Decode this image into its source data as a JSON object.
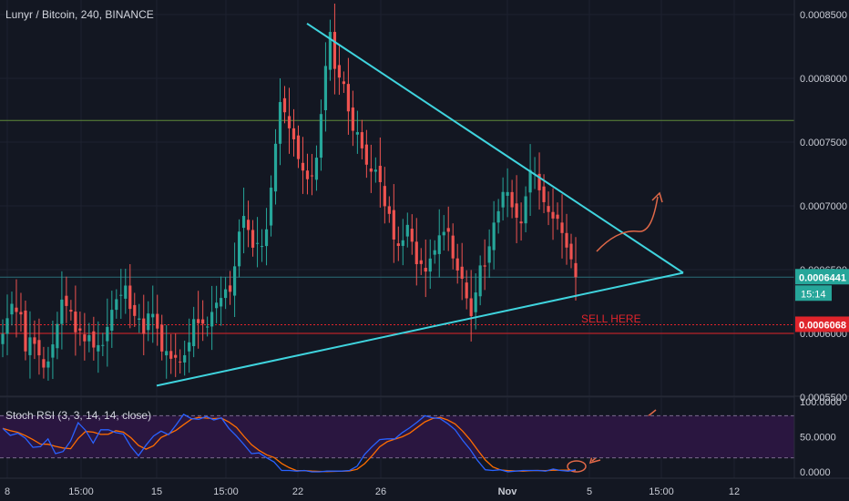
{
  "symbol_title": "Lunyr / Bitcoin, 240, BINANCE",
  "colors": {
    "background": "#131722",
    "grid": "#1e2230",
    "up": "#26a69a",
    "down": "#ef5350",
    "trendline": "#3fd4de",
    "h_line_green": "#5f8a3a",
    "h_line_teal": "#2a6d77",
    "sell_line": "#e0242b",
    "rsi_k": "#2962ff",
    "rsi_d": "#ff6d00",
    "rsi_band": "#2a1640",
    "annotation": "#e06848",
    "price_tag_teal": "#26a69a",
    "price_tag_red": "#e0242b"
  },
  "price_axis": {
    "ticks": [
      "0.0008500",
      "0.0008000",
      "0.0007500",
      "0.0007000",
      "0.0006500",
      "0.0006000",
      "0.0005500"
    ],
    "current_price_label": "0.0006441",
    "countdown_label": "15:14",
    "sell_price_label": "0.0006068"
  },
  "rsi_axis": {
    "ticks": [
      "100.0000",
      "50.0000",
      "0.0000"
    ]
  },
  "time_axis": {
    "ticks": [
      "8",
      "15:00",
      "15",
      "15:00",
      "22",
      "26",
      "Nov",
      "5",
      "15:00",
      "12"
    ]
  },
  "annotations": {
    "sell_text": "SELL HERE"
  },
  "chart_data": [
    {
      "type": "candlestick",
      "title": "Lunyr / Bitcoin, 240, BINANCE",
      "y_range": [
        0.00052,
        0.00087
      ],
      "levels": {
        "resistance_green": 0.000767,
        "current_price": 0.0006441,
        "sell_level": 0.0006068,
        "sell_level_2": 0.0006
      },
      "triangle": {
        "upper_line": [
          [
            337,
            0.000843
          ],
          [
            750,
            0.0006475
          ]
        ],
        "lower_line": [
          [
            172,
            0.000559
          ],
          [
            750,
            0.0006475
          ]
        ]
      },
      "close_series": [
        0.0005996,
        0.0006119,
        0.0006232,
        0.0006168,
        0.0006149,
        0.0005859,
        0.0005969,
        0.0005918,
        0.0005828,
        0.0005732,
        0.000578,
        0.0005914,
        0.0006074,
        0.0006265,
        0.0006215,
        0.0006171,
        0.0006009,
        0.0006022,
        0.0005938,
        0.0005986,
        0.0005889,
        0.0005908,
        0.0005909,
        0.0006051,
        0.0006185,
        0.0006268,
        0.0006302,
        0.0006375,
        0.0006192,
        0.0006137,
        0.0006117,
        0.0005996,
        0.0006156,
        0.0006153,
        0.0006038,
        0.0005858,
        0.0005862,
        0.0005801,
        0.0005809,
        0.0005772,
        0.0005829,
        0.000593,
        0.0006112,
        0.000608,
        0.0006076,
        0.0006054,
        0.0006168,
        0.0006241,
        0.0006278,
        0.0006346,
        0.0006326,
        0.0006526,
        0.0006798,
        0.0006921,
        0.0006811,
        0.0006672,
        0.0006709,
        0.0006685,
        0.0006816,
        0.0007143,
        0.0007487,
        0.0007814,
        0.0007734,
        0.0007608,
        0.0007522,
        0.0007367,
        0.0007277,
        0.0007209,
        0.0007235,
        0.0007378,
        0.000772,
        0.0008097,
        0.0008364,
        0.0008074,
        0.0008006,
        0.0007956,
        0.0007741,
        0.0007589,
        0.0007578,
        0.0007451,
        0.0007323,
        0.0007268,
        0.0007284,
        0.0007186,
        0.0006997,
        0.0006937,
        0.0006736,
        0.0006686,
        0.000673,
        0.0006851,
        0.0006719,
        0.0006543,
        0.0006544,
        0.0006485,
        0.0006587,
        0.0006652,
        0.0006769,
        0.0006796,
        0.0006797,
        0.0006588,
        0.0006493,
        0.0006429,
        0.0006275,
        0.0006136,
        0.0006321,
        0.0006533,
        0.0006524,
        0.0006683,
        0.0006869,
        0.0006958,
        0.0007109,
        0.0007108,
        0.0006989,
        0.0006907,
        0.0006863,
        0.0007075,
        0.0007281,
        0.0007251,
        0.0007122,
        0.0007029,
        0.0006952,
        0.0006901,
        0.0006899,
        0.0006787,
        0.0006673,
        0.0006581,
        0.0006441
      ],
      "stoch_rsi": {
        "name": "Stoch RSI (3, 3, 14, 14, close)",
        "y_range": [
          0,
          100
        ],
        "bands": [
          20,
          80
        ],
        "k": [
          62,
          52,
          55,
          48,
          35,
          36,
          47,
          26,
          29,
          44,
          70,
          59,
          41,
          60,
          60,
          56,
          54,
          36,
          23,
          38,
          51,
          58,
          53,
          67,
          82,
          76,
          75,
          79,
          74,
          77,
          62,
          51,
          39,
          26,
          27,
          20,
          14,
          2,
          2,
          1,
          2,
          0,
          0,
          1,
          1,
          1,
          2,
          8,
          25,
          36,
          46,
          47,
          47,
          56,
          63,
          71,
          80,
          77,
          76,
          69,
          60,
          45,
          32,
          16,
          3,
          2,
          3,
          0,
          1,
          2,
          2,
          2,
          1,
          4,
          2,
          1,
          3
        ]
      }
    }
  ]
}
